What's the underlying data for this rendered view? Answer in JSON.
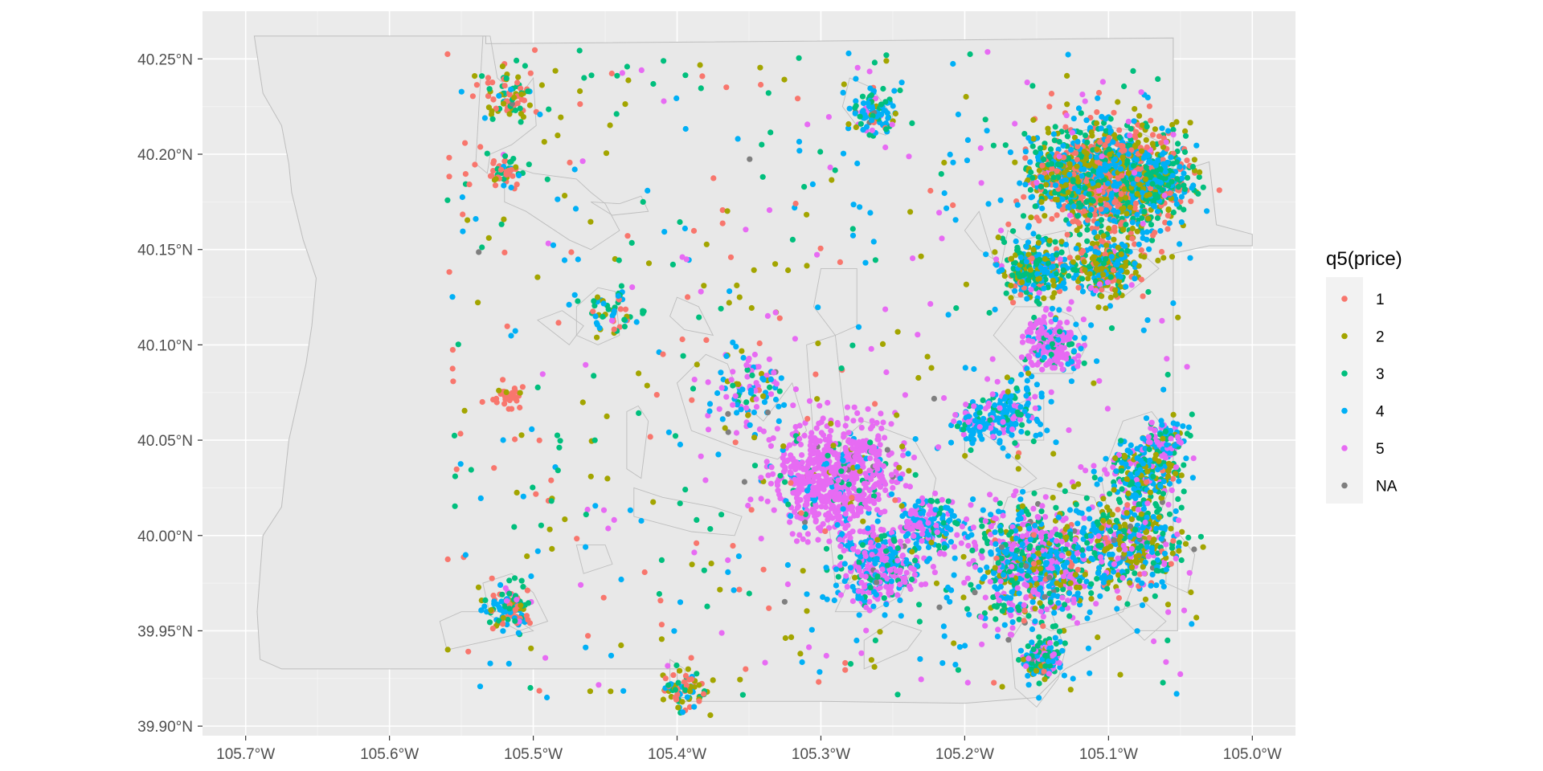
{
  "chart_data": {
    "type": "scatter",
    "xlim": [
      -105.73,
      -104.97
    ],
    "ylim": [
      39.895,
      40.275
    ],
    "x_ticks": [
      {
        "value": -105.7,
        "label": "105.7°W"
      },
      {
        "value": -105.6,
        "label": "105.6°W"
      },
      {
        "value": -105.5,
        "label": "105.5°W"
      },
      {
        "value": -105.4,
        "label": "105.4°W"
      },
      {
        "value": -105.3,
        "label": "105.3°W"
      },
      {
        "value": -105.2,
        "label": "105.2°W"
      },
      {
        "value": -105.1,
        "label": "105.1°W"
      },
      {
        "value": -105.0,
        "label": "105.0°W"
      }
    ],
    "y_ticks": [
      {
        "value": 39.9,
        "label": "39.90°N"
      },
      {
        "value": 39.95,
        "label": "39.95°N"
      },
      {
        "value": 40.0,
        "label": "40.00°N"
      },
      {
        "value": 40.05,
        "label": "40.05°N"
      },
      {
        "value": 40.1,
        "label": "40.10°N"
      },
      {
        "value": 40.15,
        "label": "40.15°N"
      },
      {
        "value": 40.2,
        "label": "40.20°N"
      },
      {
        "value": 40.25,
        "label": "40.25°N"
      }
    ],
    "grid": true,
    "panel_background": "#ebebeb",
    "gridline_color": "#ffffff",
    "boundary_color": "#bdbdbd",
    "boundary_fill": "#e8e8e8",
    "legend": {
      "title": "q5(price)",
      "position": "right",
      "entries": [
        {
          "label": "1",
          "color": "#F8766D"
        },
        {
          "label": "2",
          "color": "#A3A500"
        },
        {
          "label": "3",
          "color": "#00BF7D"
        },
        {
          "label": "4",
          "color": "#00B0F6"
        },
        {
          "label": "5",
          "color": "#E76BF3"
        },
        {
          "label": "NA",
          "color": "#7F7F7F"
        }
      ]
    },
    "county_boundary": [
      [
        -105.694,
        40.262
      ],
      [
        -105.533,
        40.262
      ],
      [
        -105.533,
        40.258
      ],
      [
        -105.2,
        40.26
      ],
      [
        -105.055,
        40.261
      ],
      [
        -105.055,
        40.19
      ],
      [
        -105.03,
        40.196
      ],
      [
        -105.025,
        40.163
      ],
      [
        -105.0,
        40.158
      ],
      [
        -105.0,
        40.152
      ],
      [
        -105.03,
        40.152
      ],
      [
        -105.055,
        40.148
      ],
      [
        -105.055,
        40.0
      ],
      [
        -105.052,
        39.985
      ],
      [
        -105.052,
        39.95
      ],
      [
        -105.08,
        39.95
      ],
      [
        -105.13,
        39.93
      ],
      [
        -105.15,
        39.915
      ],
      [
        -105.2,
        39.912
      ],
      [
        -105.3,
        39.913
      ],
      [
        -105.4,
        39.913
      ],
      [
        -105.4,
        39.93
      ],
      [
        -105.55,
        39.93
      ],
      [
        -105.675,
        39.93
      ],
      [
        -105.69,
        39.935
      ],
      [
        -105.692,
        39.96
      ],
      [
        -105.688,
        40.0
      ],
      [
        -105.675,
        40.015
      ],
      [
        -105.67,
        40.05
      ],
      [
        -105.658,
        40.09
      ],
      [
        -105.654,
        40.11
      ],
      [
        -105.651,
        40.135
      ],
      [
        -105.66,
        40.155
      ],
      [
        -105.668,
        40.18
      ],
      [
        -105.67,
        40.195
      ],
      [
        -105.675,
        40.215
      ],
      [
        -105.688,
        40.232
      ],
      [
        -105.694,
        40.262
      ]
    ],
    "municipal_areas": [
      [
        [
          -105.535,
          40.262
        ],
        [
          -105.53,
          40.262
        ],
        [
          -105.525,
          40.24
        ],
        [
          -105.51,
          40.23
        ],
        [
          -105.5,
          40.24
        ],
        [
          -105.498,
          40.215
        ],
        [
          -105.515,
          40.205
        ],
        [
          -105.53,
          40.2
        ],
        [
          -105.532,
          40.19
        ],
        [
          -105.54,
          40.195
        ],
        [
          -105.535,
          40.262
        ]
      ],
      [
        [
          -105.52,
          40.195
        ],
        [
          -105.5,
          40.19
        ],
        [
          -105.47,
          40.187
        ],
        [
          -105.46,
          40.18
        ],
        [
          -105.45,
          40.174
        ],
        [
          -105.44,
          40.16
        ],
        [
          -105.46,
          40.15
        ],
        [
          -105.475,
          40.155
        ],
        [
          -105.505,
          40.17
        ],
        [
          -105.52,
          40.175
        ],
        [
          -105.52,
          40.195
        ]
      ],
      [
        [
          -105.46,
          40.175
        ],
        [
          -105.44,
          40.174
        ],
        [
          -105.425,
          40.178
        ],
        [
          -105.42,
          40.17
        ],
        [
          -105.445,
          40.168
        ],
        [
          -105.46,
          40.175
        ]
      ],
      [
        [
          -105.47,
          40.12
        ],
        [
          -105.455,
          40.13
        ],
        [
          -105.443,
          40.128
        ],
        [
          -105.44,
          40.105
        ],
        [
          -105.455,
          40.1
        ],
        [
          -105.47,
          40.105
        ],
        [
          -105.47,
          40.12
        ]
      ],
      [
        [
          -105.497,
          40.113
        ],
        [
          -105.48,
          40.118
        ],
        [
          -105.465,
          40.11
        ],
        [
          -105.475,
          40.1
        ],
        [
          -105.497,
          40.113
        ]
      ],
      [
        [
          -105.4,
          40.125
        ],
        [
          -105.385,
          40.12
        ],
        [
          -105.375,
          40.105
        ],
        [
          -105.395,
          40.108
        ],
        [
          -105.405,
          40.115
        ],
        [
          -105.4,
          40.125
        ]
      ],
      [
        [
          -105.427,
          40.068
        ],
        [
          -105.42,
          40.06
        ],
        [
          -105.425,
          40.03
        ],
        [
          -105.435,
          40.035
        ],
        [
          -105.435,
          40.065
        ],
        [
          -105.427,
          40.068
        ]
      ],
      [
        [
          -105.4,
          40.08
        ],
        [
          -105.38,
          40.095
        ],
        [
          -105.365,
          40.09
        ],
        [
          -105.355,
          40.07
        ],
        [
          -105.34,
          40.06
        ],
        [
          -105.32,
          40.08
        ],
        [
          -105.31,
          40.055
        ],
        [
          -105.33,
          40.04
        ],
        [
          -105.355,
          40.045
        ],
        [
          -105.39,
          40.055
        ],
        [
          -105.4,
          40.08
        ]
      ],
      [
        [
          -105.31,
          40.1
        ],
        [
          -105.29,
          40.105
        ],
        [
          -105.285,
          40.07
        ],
        [
          -105.28,
          40.04
        ],
        [
          -105.29,
          40.03
        ],
        [
          -105.305,
          40.05
        ],
        [
          -105.31,
          40.1
        ]
      ],
      [
        [
          -105.3,
          40.14
        ],
        [
          -105.275,
          40.14
        ],
        [
          -105.275,
          40.11
        ],
        [
          -105.29,
          40.105
        ],
        [
          -105.305,
          40.12
        ],
        [
          -105.3,
          40.14
        ]
      ],
      [
        [
          -105.28,
          40.24
        ],
        [
          -105.265,
          40.235
        ],
        [
          -105.25,
          40.22
        ],
        [
          -105.255,
          40.21
        ],
        [
          -105.275,
          40.215
        ],
        [
          -105.285,
          40.225
        ],
        [
          -105.28,
          40.24
        ]
      ],
      [
        [
          -105.285,
          40.05
        ],
        [
          -105.27,
          40.06
        ],
        [
          -105.235,
          40.05
        ],
        [
          -105.22,
          40.03
        ],
        [
          -105.225,
          40.01
        ],
        [
          -105.245,
          39.995
        ],
        [
          -105.26,
          39.985
        ],
        [
          -105.28,
          39.975
        ],
        [
          -105.29,
          39.975
        ],
        [
          -105.295,
          40.01
        ],
        [
          -105.285,
          40.05
        ]
      ],
      [
        [
          -105.29,
          39.96
        ],
        [
          -105.265,
          39.96
        ],
        [
          -105.245,
          39.968
        ],
        [
          -105.235,
          39.985
        ],
        [
          -105.25,
          39.99
        ],
        [
          -105.275,
          39.985
        ],
        [
          -105.29,
          39.96
        ]
      ],
      [
        [
          -105.27,
          39.93
        ],
        [
          -105.24,
          39.94
        ],
        [
          -105.23,
          39.95
        ],
        [
          -105.25,
          39.955
        ],
        [
          -105.27,
          39.945
        ],
        [
          -105.27,
          39.93
        ]
      ],
      [
        [
          -105.2,
          40.16
        ],
        [
          -105.19,
          40.15
        ],
        [
          -105.18,
          40.145
        ],
        [
          -105.19,
          40.17
        ],
        [
          -105.2,
          40.16
        ]
      ],
      [
        [
          -105.185,
          40.06
        ],
        [
          -105.16,
          40.07
        ],
        [
          -105.145,
          40.075
        ],
        [
          -105.145,
          40.05
        ],
        [
          -105.165,
          40.05
        ],
        [
          -105.185,
          40.06
        ]
      ],
      [
        [
          -105.18,
          40.105
        ],
        [
          -105.165,
          40.12
        ],
        [
          -105.14,
          40.12
        ],
        [
          -105.125,
          40.115
        ],
        [
          -105.115,
          40.1
        ],
        [
          -105.125,
          40.085
        ],
        [
          -105.155,
          40.085
        ],
        [
          -105.18,
          40.105
        ]
      ],
      [
        [
          -105.18,
          40.05
        ],
        [
          -105.2,
          40.06
        ],
        [
          -105.2,
          40.04
        ],
        [
          -105.18,
          40.03
        ],
        [
          -105.16,
          40.025
        ],
        [
          -105.15,
          40.03
        ],
        [
          -105.18,
          40.05
        ]
      ],
      [
        [
          -105.17,
          40.16
        ],
        [
          -105.16,
          40.155
        ],
        [
          -105.13,
          40.16
        ],
        [
          -105.125,
          40.14
        ],
        [
          -105.14,
          40.125
        ],
        [
          -105.165,
          40.125
        ],
        [
          -105.175,
          40.14
        ],
        [
          -105.17,
          40.16
        ]
      ],
      [
        [
          -105.12,
          40.2
        ],
        [
          -105.13,
          40.21
        ],
        [
          -105.105,
          40.215
        ],
        [
          -105.08,
          40.212
        ],
        [
          -105.06,
          40.205
        ],
        [
          -105.055,
          40.19
        ],
        [
          -105.07,
          40.17
        ],
        [
          -105.1,
          40.165
        ],
        [
          -105.13,
          40.175
        ],
        [
          -105.14,
          40.19
        ],
        [
          -105.12,
          40.2
        ]
      ],
      [
        [
          -105.1,
          40.15
        ],
        [
          -105.08,
          40.15
        ],
        [
          -105.065,
          40.14
        ],
        [
          -105.09,
          40.125
        ],
        [
          -105.11,
          40.13
        ],
        [
          -105.1,
          40.15
        ]
      ],
      [
        [
          -105.09,
          40.06
        ],
        [
          -105.07,
          40.065
        ],
        [
          -105.055,
          40.05
        ],
        [
          -105.055,
          40.03
        ],
        [
          -105.065,
          40.01
        ],
        [
          -105.085,
          40.0
        ],
        [
          -105.1,
          40.01
        ],
        [
          -105.105,
          40.03
        ],
        [
          -105.09,
          40.06
        ]
      ],
      [
        [
          -105.17,
          40.02
        ],
        [
          -105.145,
          40.025
        ],
        [
          -105.11,
          40.02
        ],
        [
          -105.1,
          40.0
        ],
        [
          -105.08,
          39.98
        ],
        [
          -105.09,
          39.96
        ],
        [
          -105.11,
          39.955
        ],
        [
          -105.14,
          39.95
        ],
        [
          -105.165,
          39.96
        ],
        [
          -105.18,
          39.98
        ],
        [
          -105.18,
          40.0
        ],
        [
          -105.17,
          40.02
        ]
      ],
      [
        [
          -105.155,
          39.96
        ],
        [
          -105.14,
          39.96
        ],
        [
          -105.13,
          39.94
        ],
        [
          -105.135,
          39.925
        ],
        [
          -105.15,
          39.91
        ],
        [
          -105.165,
          39.92
        ],
        [
          -105.168,
          39.945
        ],
        [
          -105.155,
          39.96
        ]
      ],
      [
        [
          -105.06,
          39.995
        ],
        [
          -105.05,
          40.0
        ],
        [
          -105.04,
          39.99
        ],
        [
          -105.045,
          39.97
        ],
        [
          -105.06,
          39.975
        ],
        [
          -105.06,
          39.995
        ]
      ],
      [
        [
          -105.095,
          39.96
        ],
        [
          -105.075,
          39.965
        ],
        [
          -105.06,
          39.955
        ],
        [
          -105.075,
          39.945
        ],
        [
          -105.095,
          39.96
        ]
      ],
      [
        [
          -105.565,
          39.955
        ],
        [
          -105.55,
          39.96
        ],
        [
          -105.52,
          39.96
        ],
        [
          -105.5,
          39.95
        ],
        [
          -105.53,
          39.945
        ],
        [
          -105.56,
          39.94
        ],
        [
          -105.565,
          39.955
        ]
      ],
      [
        [
          -105.535,
          39.975
        ],
        [
          -105.515,
          39.98
        ],
        [
          -105.5,
          39.97
        ],
        [
          -105.49,
          39.955
        ],
        [
          -105.51,
          39.95
        ],
        [
          -105.53,
          39.958
        ],
        [
          -105.535,
          39.975
        ]
      ],
      [
        [
          -105.47,
          39.995
        ],
        [
          -105.45,
          39.995
        ],
        [
          -105.445,
          39.985
        ],
        [
          -105.465,
          39.98
        ],
        [
          -105.47,
          39.995
        ]
      ],
      [
        [
          -105.43,
          40.025
        ],
        [
          -105.41,
          40.02
        ],
        [
          -105.375,
          40.015
        ],
        [
          -105.355,
          40.01
        ],
        [
          -105.36,
          40.0
        ],
        [
          -105.39,
          40.002
        ],
        [
          -105.43,
          40.01
        ],
        [
          -105.43,
          40.025
        ]
      ],
      [
        [
          -105.405,
          39.935
        ],
        [
          -105.395,
          39.93
        ],
        [
          -105.39,
          39.915
        ],
        [
          -105.405,
          39.915
        ],
        [
          -105.405,
          39.935
        ]
      ]
    ]
  }
}
